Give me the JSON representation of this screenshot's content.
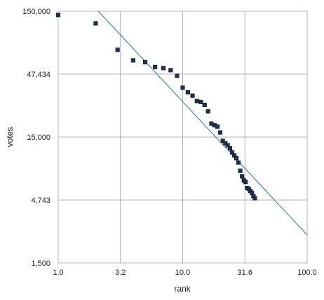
{
  "chart_data": {
    "type": "scatter",
    "xlabel": "rank",
    "ylabel": "votes",
    "x_scale": "log",
    "y_scale": "log",
    "xlim": [
      1.0,
      100.0
    ],
    "ylim": [
      1500,
      150000
    ],
    "grid": true,
    "x_ticks": [
      "1.0",
      "3.2",
      "10.0",
      "31.6",
      "100.0"
    ],
    "y_ticks": [
      "150,000",
      "47,434",
      "15,000",
      "4,743",
      "1,500"
    ],
    "x_tick_values": [
      1.0,
      3.162,
      10.0,
      31.62,
      100.0
    ],
    "y_tick_values": [
      150000,
      47434,
      15000,
      4743,
      1500
    ],
    "colors": {
      "points": "#1f3050",
      "trendline": "#2b6ea6",
      "grid": "#b3b3b3"
    },
    "trendline": {
      "points": [
        [
          2.1,
          150000
        ],
        [
          100.0,
          2500
        ]
      ]
    },
    "series": [
      {
        "points": [
          [
            1,
            140000
          ],
          [
            2,
            120000
          ],
          [
            3,
            74000
          ],
          [
            4,
            61000
          ],
          [
            5,
            59000
          ],
          [
            6,
            54000
          ],
          [
            7,
            53000
          ],
          [
            8,
            51000
          ],
          [
            9,
            46000
          ],
          [
            10,
            37000
          ],
          [
            11,
            34000
          ],
          [
            12,
            32000
          ],
          [
            13,
            29000
          ],
          [
            14,
            28500
          ],
          [
            15,
            27000
          ],
          [
            16,
            24000
          ],
          [
            17,
            19200
          ],
          [
            18,
            18600
          ],
          [
            19,
            18200
          ],
          [
            20,
            16300
          ],
          [
            21,
            14000
          ],
          [
            22,
            13400
          ],
          [
            23,
            12900
          ],
          [
            24,
            12200
          ],
          [
            25,
            11300
          ],
          [
            26,
            10700
          ],
          [
            27,
            10200
          ],
          [
            28,
            9400
          ],
          [
            29,
            8100
          ],
          [
            30,
            7300
          ],
          [
            31,
            6800
          ],
          [
            32,
            6600
          ],
          [
            33,
            5900
          ],
          [
            34,
            5800
          ],
          [
            35,
            5600
          ],
          [
            36,
            5400
          ],
          [
            37,
            5100
          ],
          [
            38,
            4900
          ]
        ]
      }
    ]
  }
}
